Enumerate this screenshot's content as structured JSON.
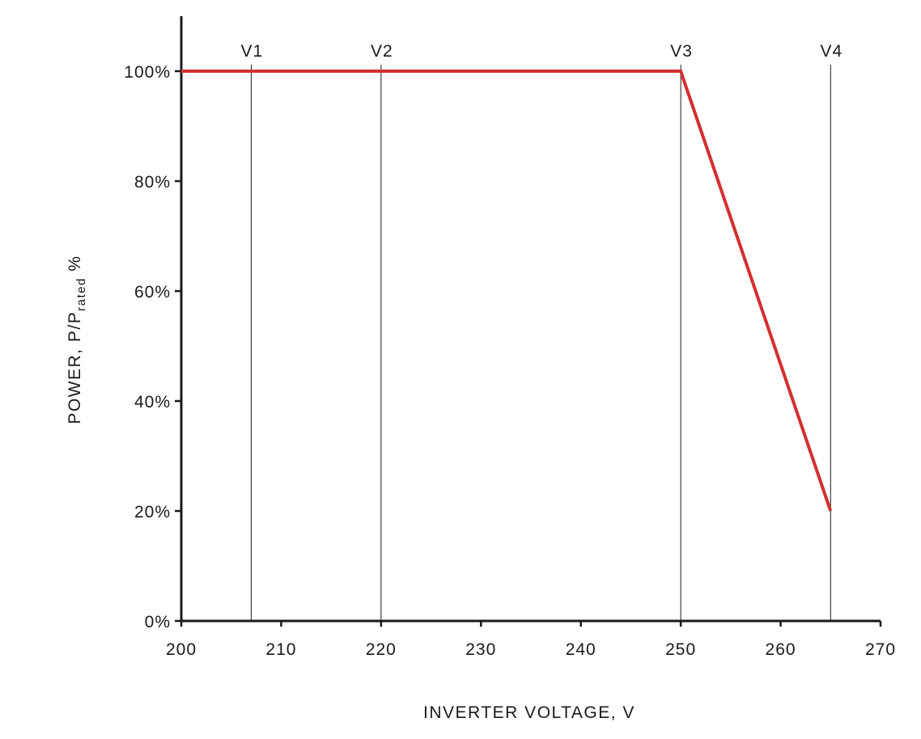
{
  "chart_data": {
    "type": "line",
    "xlabel": "INVERTER VOLTAGE, V",
    "ylabel": {
      "main": "POWER, P/P",
      "subscript": "rated",
      "suffix": " %"
    },
    "xlim": [
      200,
      270
    ],
    "ylim": [
      0,
      100
    ],
    "xticks": [
      200,
      210,
      220,
      230,
      240,
      250,
      260,
      270
    ],
    "yticks": [
      0,
      20,
      40,
      60,
      80,
      100
    ],
    "ytick_labels": [
      "0%",
      "20%",
      "40%",
      "60%",
      "80%",
      "100%"
    ],
    "grid": false,
    "series": [
      {
        "color": "#d32f2f",
        "x": [
          200,
          250,
          265
        ],
        "y": [
          100,
          100,
          20
        ]
      }
    ],
    "reference_lines": [
      {
        "label": "V1",
        "x": 207
      },
      {
        "label": "V2",
        "x": 220
      },
      {
        "label": "V3",
        "x": 250
      },
      {
        "label": "V4",
        "x": 265
      }
    ]
  }
}
